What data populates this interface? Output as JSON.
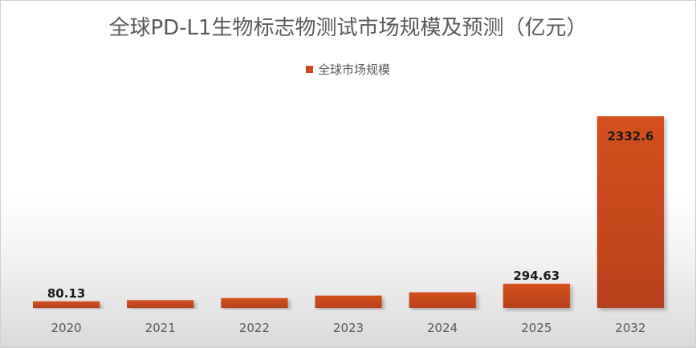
{
  "chart_data": {
    "type": "bar",
    "title": "全球PD-L1生物标志物测试市场规模及预测（亿元）",
    "legend": {
      "position": "top",
      "entries": [
        "全球市场规模"
      ]
    },
    "categories": [
      "2020",
      "2021",
      "2022",
      "2023",
      "2024",
      "2025",
      "2032"
    ],
    "series": [
      {
        "name": "全球市场规模",
        "values": [
          80.13,
          95,
          120,
          150,
          190,
          294.63,
          2332.6
        ],
        "data_labels": [
          "80.13",
          "",
          "",
          "",
          "",
          "294.63",
          "2332.6"
        ]
      }
    ],
    "ylim": [
      0,
      2332.6
    ],
    "grid": false,
    "y_axis_visible": false,
    "bar_color": "#c9471b"
  }
}
